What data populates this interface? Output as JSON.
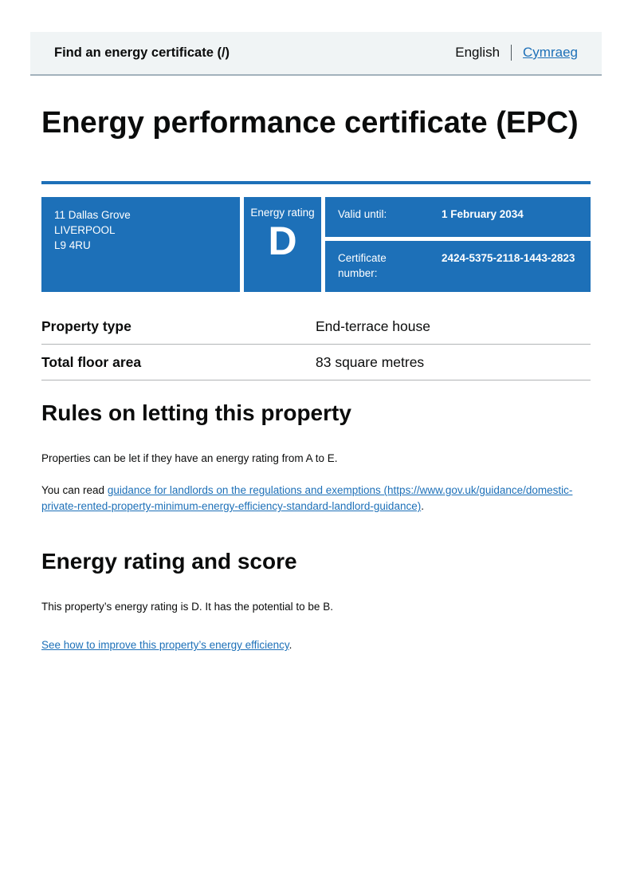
{
  "header": {
    "service_name": "Find an energy certificate (/)",
    "language_current": "English",
    "language_link": "Cymraeg"
  },
  "title": "Energy performance certificate (EPC)",
  "summary_banner": {
    "address_lines": [
      "11 Dallas Grove",
      "LIVERPOOL",
      "L9 4RU"
    ],
    "energy_rating_label": "Energy rating",
    "energy_rating": "D",
    "valid_until_label": "Valid until:",
    "valid_until_value": "1 February 2034",
    "certificate_number_label": "Certificate number:",
    "certificate_number_value": "2424-5375-2118-1443-2823"
  },
  "property_table": {
    "rows": [
      {
        "label": "Property type",
        "value": "End-terrace house"
      },
      {
        "label": "Total floor area",
        "value": "83 square metres"
      }
    ]
  },
  "rules_section": {
    "heading": "Rules on letting this property",
    "paragraph1": "Properties can be let if they have an energy rating from A to E.",
    "paragraph2_prefix": "You can read ",
    "paragraph2_link": "guidance for landlords on the regulations and exemptions (https://www.gov.uk/guidance/domestic-private-rented-property-minimum-energy-efficiency-standard-landlord-guidance)",
    "paragraph2_suffix": "."
  },
  "rating_section": {
    "heading": "Energy rating and score",
    "paragraph1": "This property’s energy rating is D. It has the potential to be B.",
    "improve_link": "See how to improve this property’s energy efficiency",
    "improve_suffix": "."
  },
  "colors": {
    "govuk_blue": "#1d70b8",
    "link_blue": "#1d70b8",
    "header_background": "#f0f4f5",
    "text": "#0b0c0c"
  }
}
